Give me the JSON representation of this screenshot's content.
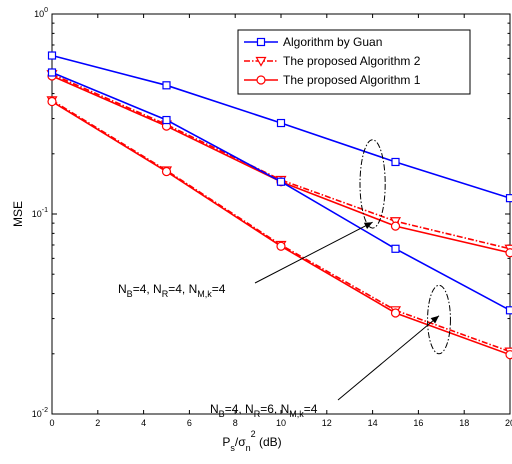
{
  "chart_data": {
    "type": "line",
    "xlabel": "P_s/σ_n^2 (dB)",
    "ylabel": "MSE",
    "xlim": [
      0,
      20
    ],
    "ylim": [
      0.01,
      1
    ],
    "yscale": "log",
    "x_ticks": [
      "0",
      "2",
      "4",
      "6",
      "8",
      "10",
      "12",
      "14",
      "16",
      "18",
      "20"
    ],
    "y_ticks": [
      {
        "base": "10",
        "exp": "0",
        "value": 1
      },
      {
        "base": "10",
        "exp": "-1",
        "value": 0.1
      },
      {
        "base": "10",
        "exp": "-2",
        "value": 0.01
      }
    ],
    "grid": false,
    "legend_position": "top-right",
    "series": [
      {
        "name": "Algorithm by Guan",
        "color": "#0000ff",
        "marker": "square",
        "dash": "solid",
        "group": "NR4",
        "x": [
          0,
          5,
          10,
          15,
          20
        ],
        "y": [
          0.62,
          0.44,
          0.285,
          0.182,
          0.12
        ]
      },
      {
        "name": "The proposed Algorithm 2",
        "color": "#ff0000",
        "marker": "triangle-down",
        "dash": "dashdot",
        "group": "NR4",
        "x": [
          0,
          5,
          10,
          15,
          20
        ],
        "y": [
          0.5,
          0.28,
          0.148,
          0.092,
          0.067
        ]
      },
      {
        "name": "The proposed Algorithm 1",
        "color": "#ff0000",
        "marker": "circle",
        "dash": "solid",
        "group": "NR4",
        "x": [
          0,
          5,
          10,
          15,
          20
        ],
        "y": [
          0.49,
          0.275,
          0.145,
          0.087,
          0.064
        ]
      },
      {
        "name": "Algorithm by Guan",
        "color": "#0000ff",
        "marker": "square",
        "dash": "solid",
        "group": "NR4",
        "x": [
          0,
          5,
          10,
          15,
          20
        ],
        "y": [
          0.51,
          0.295,
          0.145,
          0.067,
          0.033
        ]
      },
      {
        "name": "The proposed Algorithm 2",
        "color": "#ff0000",
        "marker": "triangle-down",
        "dash": "dashdot",
        "group": "NR6",
        "x": [
          0,
          5,
          10,
          15,
          20
        ],
        "y": [
          0.37,
          0.165,
          0.07,
          0.033,
          0.0205
        ]
      },
      {
        "name": "The proposed Algorithm 1",
        "color": "#ff0000",
        "marker": "circle",
        "dash": "solid",
        "group": "NR6",
        "x": [
          0,
          5,
          10,
          15,
          20
        ],
        "y": [
          0.365,
          0.163,
          0.069,
          0.032,
          0.0198
        ]
      }
    ],
    "annotations": [
      {
        "id": "nr4",
        "parts": [
          [
            "N",
            "B",
            "=4, "
          ],
          [
            "N",
            "R",
            "=4, "
          ],
          [
            "N",
            "M,k",
            "=4"
          ]
        ],
        "ellipse_center": [
          14.0,
          0.135
        ],
        "ellipse_x_halfwidth": 0.55,
        "ellipse_y_range": [
          0.085,
          0.235
        ],
        "arrow_tip": [
          14.0,
          0.091
        ]
      },
      {
        "id": "nr6",
        "parts": [
          [
            "N",
            "B",
            "=4, "
          ],
          [
            "N",
            "R",
            "=6, "
          ],
          [
            "N",
            "M,k",
            "=4"
          ]
        ],
        "ellipse_center": [
          16.9,
          0.03
        ],
        "ellipse_x_halfwidth": 0.5,
        "ellipse_y_range": [
          0.02,
          0.044
        ],
        "arrow_tip": [
          16.9,
          0.031
        ]
      }
    ]
  }
}
